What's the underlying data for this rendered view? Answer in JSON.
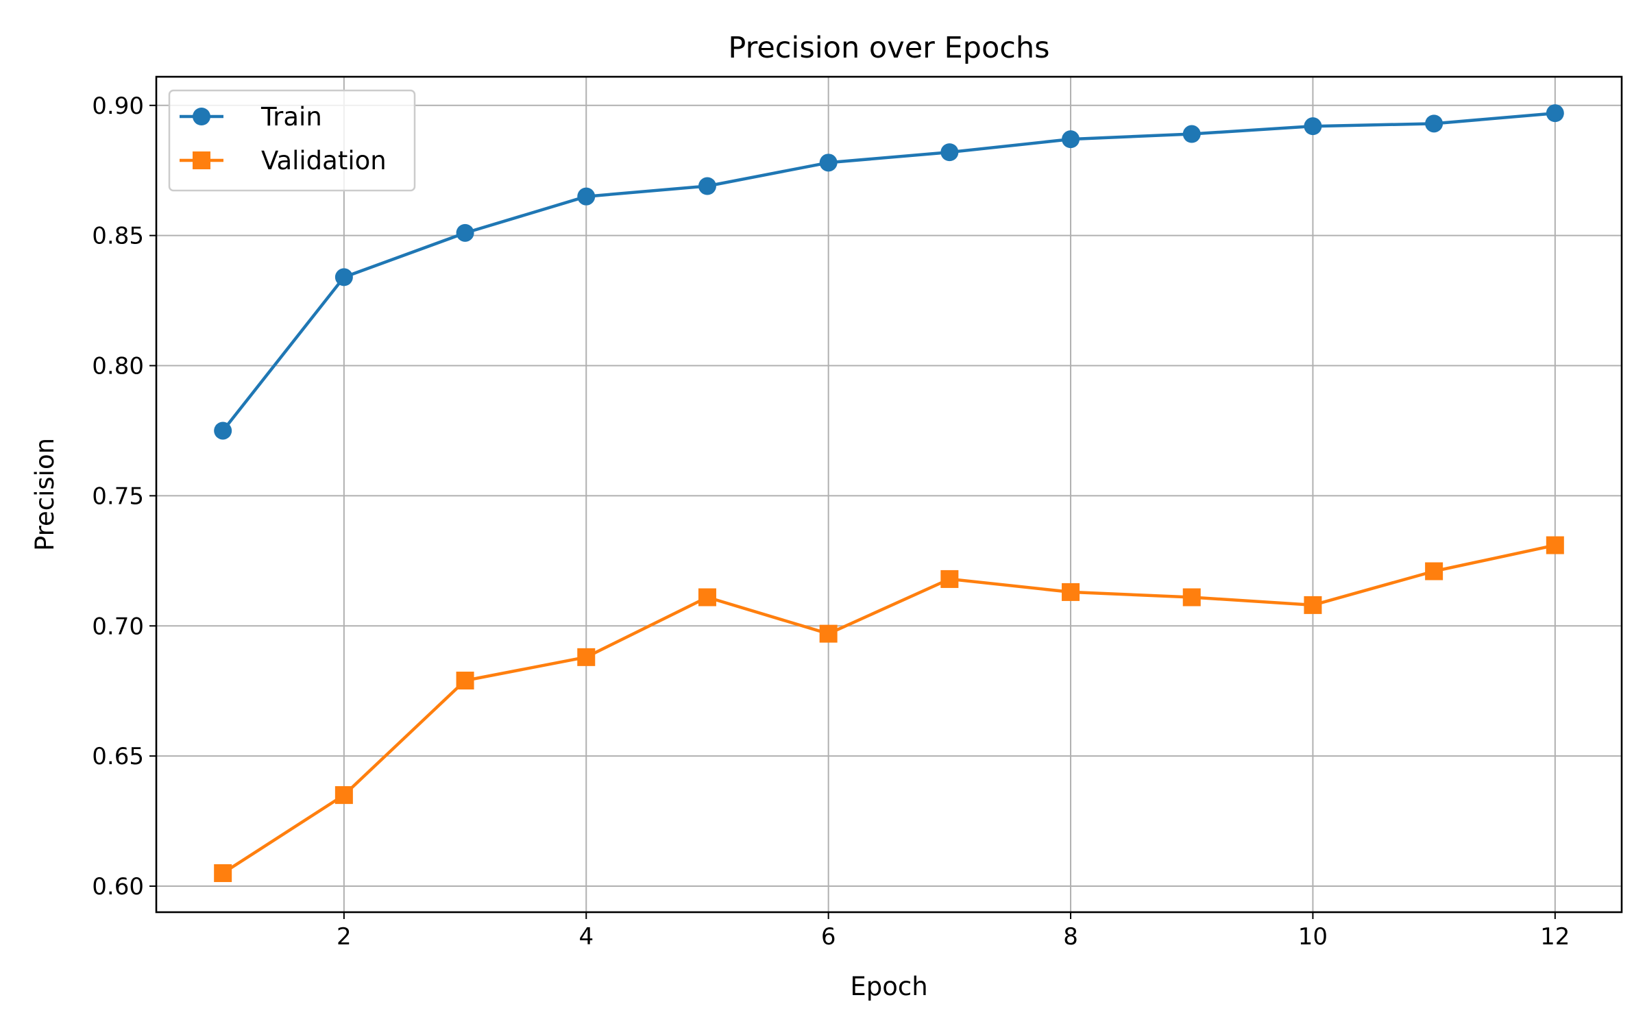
{
  "chart_data": {
    "type": "line",
    "title": "Precision over Epochs",
    "xlabel": "Epoch",
    "ylabel": "Precision",
    "x": [
      1,
      2,
      3,
      4,
      5,
      6,
      7,
      8,
      9,
      10,
      11,
      12
    ],
    "xlim": [
      0.45,
      12.55
    ],
    "ylim": [
      0.59,
      0.911
    ],
    "xticks": [
      2,
      4,
      6,
      8,
      10,
      12
    ],
    "xtick_labels": [
      "2",
      "4",
      "6",
      "8",
      "10",
      "12"
    ],
    "yticks": [
      0.6,
      0.65,
      0.7,
      0.75,
      0.8,
      0.85,
      0.9
    ],
    "ytick_labels": [
      "0.60",
      "0.65",
      "0.70",
      "0.75",
      "0.80",
      "0.85",
      "0.90"
    ],
    "grid": true,
    "legend_position": "top-left",
    "series": [
      {
        "name": "Train",
        "marker": "circle",
        "color": "#1f77b4",
        "values": [
          0.775,
          0.834,
          0.851,
          0.865,
          0.869,
          0.878,
          0.882,
          0.887,
          0.889,
          0.892,
          0.893,
          0.897
        ]
      },
      {
        "name": "Validation",
        "marker": "square",
        "color": "#ff7f0e",
        "values": [
          0.605,
          0.635,
          0.679,
          0.688,
          0.711,
          0.697,
          0.718,
          0.713,
          0.711,
          0.708,
          0.721,
          0.731
        ]
      }
    ]
  }
}
